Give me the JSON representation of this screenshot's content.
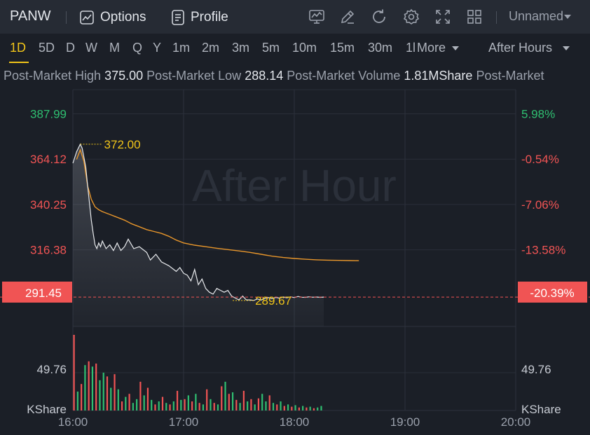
{
  "header": {
    "ticker": "PANW",
    "options_label": "Options",
    "profile_label": "Profile",
    "layout_name": "Unnamed"
  },
  "timeframes": {
    "items": [
      "1D",
      "5D",
      "D",
      "W",
      "M",
      "Q",
      "Y",
      "1m",
      "2m",
      "3m",
      "5m",
      "10m",
      "15m",
      "30m",
      "1l"
    ],
    "more_label": "More",
    "active": "1D",
    "session_label": "After Hours"
  },
  "stats": {
    "high_label": "Post-Market High",
    "high_value": "375.00",
    "low_label": "Post-Market Low",
    "low_value": "288.14",
    "volume_label": "Post-Market Volume",
    "volume_value": "1.81MShare",
    "tail_label": "Post-Market"
  },
  "chart_data": {
    "type": "line",
    "watermark": "After Hour",
    "x_ticks": [
      "16:00",
      "17:00",
      "18:00",
      "19:00",
      "20:00"
    ],
    "xlim_minutes": [
      0,
      240
    ],
    "price_ticks": [
      "387.99",
      "364.12",
      "340.25",
      "316.38"
    ],
    "percent_ticks": [
      "5.98%",
      "-0.54%",
      "-7.06%",
      "-13.58%"
    ],
    "current_price": "291.45",
    "current_percent": "-20.39%",
    "ylim": [
      276,
      400
    ],
    "max_label": "372.00",
    "min_label": "289.67",
    "volume_label": "49.76",
    "volume_unit": "KShare",
    "colors": {
      "up": "#2fbf71",
      "down": "#f05454",
      "price": "#e9ebee",
      "avg": "#e8962b",
      "accent": "#f0c419"
    },
    "price_series": {
      "minutes": [
        0,
        2,
        4,
        5,
        6,
        7,
        8,
        10,
        11,
        12,
        13,
        14,
        15,
        16,
        18,
        20,
        22,
        24,
        26,
        28,
        30,
        33,
        36,
        40,
        42,
        45,
        48,
        52,
        56,
        58,
        60,
        62,
        64,
        66,
        68,
        70,
        72,
        74,
        76,
        78,
        80,
        82,
        84,
        86,
        88,
        90,
        92,
        94,
        96,
        98,
        100,
        102,
        104,
        106,
        108,
        110,
        112,
        114,
        116,
        118,
        120,
        122,
        124,
        126,
        128,
        130,
        132,
        134,
        136
      ],
      "values": [
        362,
        368,
        372,
        370,
        365,
        360,
        350,
        332,
        325,
        319,
        317,
        320,
        318,
        321,
        317,
        319,
        316,
        320,
        316,
        318,
        322,
        317,
        318,
        315,
        311,
        314,
        310,
        308,
        305,
        307,
        304,
        303,
        300,
        306,
        298,
        301,
        296,
        294,
        293,
        296,
        295,
        294,
        295,
        292,
        291,
        290,
        292,
        290,
        290,
        289.7,
        290.5,
        289.9,
        290.8,
        291.2,
        290.6,
        291.3,
        290.9,
        291.5,
        291.1,
        291.6,
        291.2,
        291.8,
        291.4,
        291.3,
        291.6,
        291.4,
        291.5,
        291.3,
        291.45
      ]
    },
    "avg_series": {
      "minutes": [
        2,
        4,
        6,
        8,
        10,
        12,
        14,
        16,
        20,
        24,
        28,
        32,
        36,
        40,
        44,
        48,
        52,
        56,
        60,
        66,
        72,
        78,
        84,
        90,
        96,
        102,
        108,
        114,
        120,
        126,
        132,
        138,
        144,
        150,
        155
      ],
      "values": [
        364,
        369,
        363,
        350,
        343,
        339,
        337.5,
        336.5,
        335,
        333.5,
        332,
        330,
        328.5,
        327,
        326,
        325,
        323.5,
        321.5,
        320,
        318.8,
        318,
        317.2,
        316.5,
        315.8,
        315,
        314,
        313,
        312.3,
        311.8,
        311.4,
        311.1,
        310.9,
        310.8,
        310.7,
        310.6
      ]
    },
    "volume_max": 100,
    "volume_bars": [
      {
        "m": 0,
        "v": 100,
        "d": 1
      },
      {
        "m": 2,
        "v": 25,
        "d": 0
      },
      {
        "m": 4,
        "v": 35,
        "d": 1
      },
      {
        "m": 6,
        "v": 60,
        "d": 0
      },
      {
        "m": 8,
        "v": 65,
        "d": 1
      },
      {
        "m": 10,
        "v": 58,
        "d": 0
      },
      {
        "m": 12,
        "v": 62,
        "d": 1
      },
      {
        "m": 14,
        "v": 40,
        "d": 0
      },
      {
        "m": 16,
        "v": 50,
        "d": 0
      },
      {
        "m": 18,
        "v": 45,
        "d": 1
      },
      {
        "m": 20,
        "v": 30,
        "d": 0
      },
      {
        "m": 22,
        "v": 48,
        "d": 1
      },
      {
        "m": 24,
        "v": 28,
        "d": 0
      },
      {
        "m": 26,
        "v": 12,
        "d": 1
      },
      {
        "m": 28,
        "v": 18,
        "d": 0
      },
      {
        "m": 30,
        "v": 22,
        "d": 1
      },
      {
        "m": 32,
        "v": 10,
        "d": 0
      },
      {
        "m": 34,
        "v": 15,
        "d": 0
      },
      {
        "m": 36,
        "v": 38,
        "d": 1
      },
      {
        "m": 38,
        "v": 20,
        "d": 0
      },
      {
        "m": 40,
        "v": 30,
        "d": 1
      },
      {
        "m": 42,
        "v": 14,
        "d": 0
      },
      {
        "m": 44,
        "v": 8,
        "d": 1
      },
      {
        "m": 46,
        "v": 12,
        "d": 0
      },
      {
        "m": 48,
        "v": 18,
        "d": 1
      },
      {
        "m": 50,
        "v": 10,
        "d": 0
      },
      {
        "m": 52,
        "v": 8,
        "d": 1
      },
      {
        "m": 54,
        "v": 12,
        "d": 0
      },
      {
        "m": 56,
        "v": 26,
        "d": 1
      },
      {
        "m": 58,
        "v": 14,
        "d": 0
      },
      {
        "m": 60,
        "v": 15,
        "d": 1
      },
      {
        "m": 62,
        "v": 20,
        "d": 0
      },
      {
        "m": 64,
        "v": 12,
        "d": 1
      },
      {
        "m": 66,
        "v": 22,
        "d": 0
      },
      {
        "m": 68,
        "v": 10,
        "d": 1
      },
      {
        "m": 70,
        "v": 8,
        "d": 0
      },
      {
        "m": 72,
        "v": 28,
        "d": 1
      },
      {
        "m": 74,
        "v": 15,
        "d": 0
      },
      {
        "m": 76,
        "v": 10,
        "d": 1
      },
      {
        "m": 78,
        "v": 8,
        "d": 0
      },
      {
        "m": 80,
        "v": 32,
        "d": 1
      },
      {
        "m": 82,
        "v": 38,
        "d": 0
      },
      {
        "m": 84,
        "v": 22,
        "d": 1
      },
      {
        "m": 86,
        "v": 24,
        "d": 0
      },
      {
        "m": 88,
        "v": 14,
        "d": 1
      },
      {
        "m": 90,
        "v": 10,
        "d": 0
      },
      {
        "m": 92,
        "v": 26,
        "d": 1
      },
      {
        "m": 94,
        "v": 12,
        "d": 0
      },
      {
        "m": 96,
        "v": 15,
        "d": 1
      },
      {
        "m": 98,
        "v": 8,
        "d": 0
      },
      {
        "m": 100,
        "v": 16,
        "d": 1
      },
      {
        "m": 102,
        "v": 22,
        "d": 0
      },
      {
        "m": 104,
        "v": 12,
        "d": 0
      },
      {
        "m": 106,
        "v": 20,
        "d": 1
      },
      {
        "m": 108,
        "v": 10,
        "d": 0
      },
      {
        "m": 110,
        "v": 8,
        "d": 1
      },
      {
        "m": 112,
        "v": 12,
        "d": 0
      },
      {
        "m": 114,
        "v": 6,
        "d": 1
      },
      {
        "m": 116,
        "v": 8,
        "d": 0
      },
      {
        "m": 118,
        "v": 5,
        "d": 1
      },
      {
        "m": 120,
        "v": 7,
        "d": 0
      },
      {
        "m": 122,
        "v": 4,
        "d": 1
      },
      {
        "m": 124,
        "v": 6,
        "d": 0
      },
      {
        "m": 126,
        "v": 4,
        "d": 1
      },
      {
        "m": 128,
        "v": 5,
        "d": 0
      },
      {
        "m": 130,
        "v": 3,
        "d": 1
      },
      {
        "m": 132,
        "v": 4,
        "d": 0
      },
      {
        "m": 134,
        "v": 6,
        "d": 0
      }
    ]
  }
}
